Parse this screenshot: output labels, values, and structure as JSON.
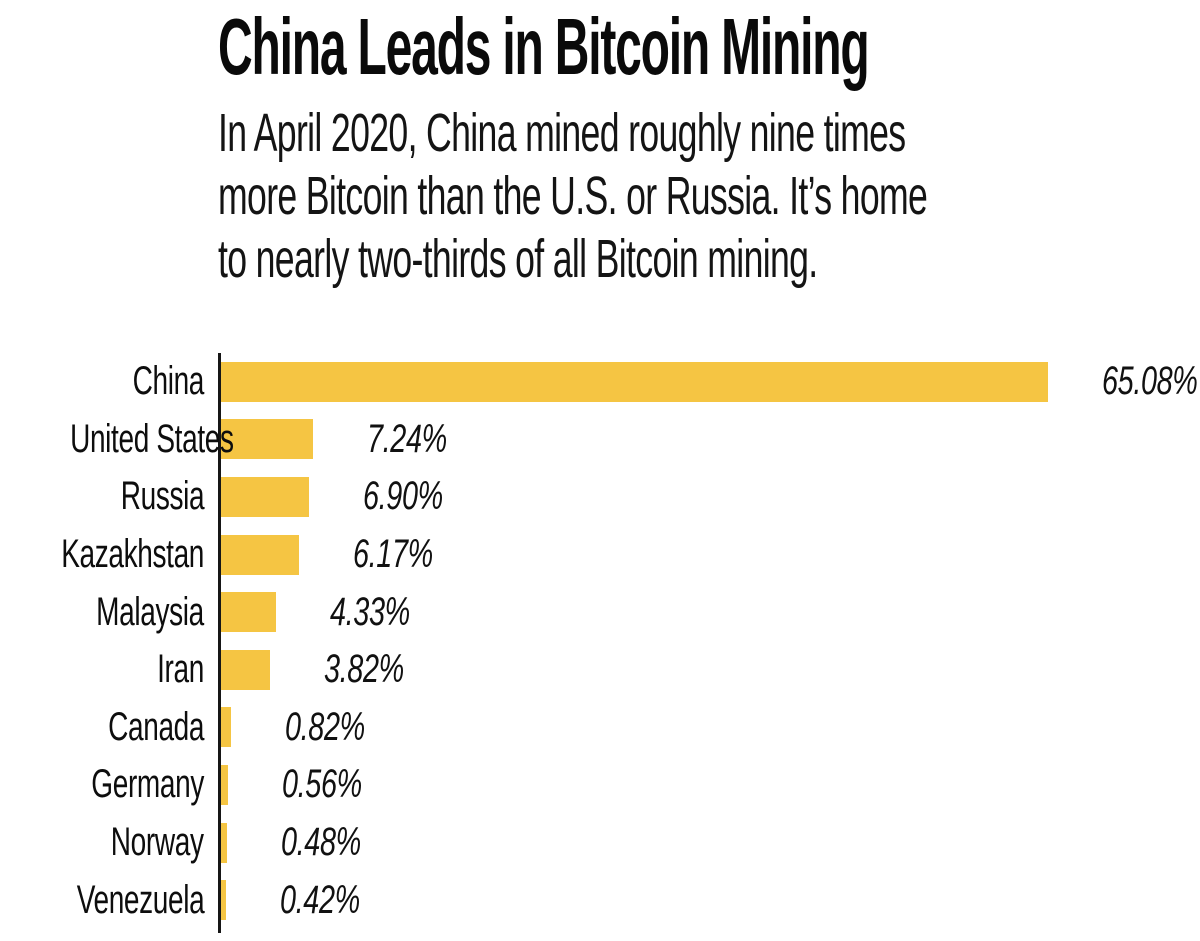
{
  "header": {
    "title": "China Leads in Bitcoin Mining",
    "subtitle_lines": [
      "In April 2020, China mined roughly nine times",
      "more Bitcoin than the U.S. or Russia. It’s home",
      "to nearly two-thirds of all Bitcoin mining."
    ]
  },
  "chart_data": {
    "type": "bar",
    "orientation": "horizontal",
    "title": "China Leads in Bitcoin Mining",
    "subtitle": "In April 2020, China mined roughly nine times more Bitcoin than the U.S. or Russia. It’s home to nearly two-thirds of all Bitcoin mining.",
    "categories": [
      "China",
      "United States",
      "Russia",
      "Kazakhstan",
      "Malaysia",
      "Iran",
      "Canada",
      "Germany",
      "Norway",
      "Venezuela"
    ],
    "values": [
      65.08,
      7.24,
      6.9,
      6.17,
      4.33,
      3.82,
      0.82,
      0.56,
      0.48,
      0.42
    ],
    "value_labels": [
      "65.08%",
      "7.24%",
      "6.90%",
      "6.17%",
      "4.33%",
      "3.82%",
      "0.82%",
      "0.56%",
      "0.48%",
      "0.42%"
    ],
    "unit": "percent of global Bitcoin mining",
    "xlim": [
      0,
      65.08
    ],
    "grid": false,
    "legend": "none",
    "bar_color": "#F5C543",
    "axis_color": "#161616",
    "text_color": "#0d0d0d"
  }
}
